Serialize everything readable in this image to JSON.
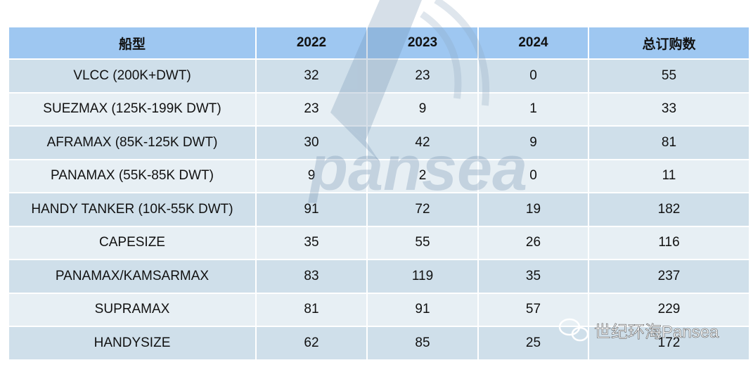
{
  "table": {
    "header": [
      "船型",
      "2022",
      "2023",
      "2024",
      "总订购数"
    ],
    "rows": [
      [
        "VLCC (200K+DWT)",
        "32",
        "23",
        "0",
        "55"
      ],
      [
        "SUEZMAX (125K-199K DWT)",
        "23",
        "9",
        "1",
        "33"
      ],
      [
        "AFRAMAX (85K-125K DWT)",
        "30",
        "42",
        "9",
        "81"
      ],
      [
        "PANAMAX (55K-85K DWT)",
        "9",
        "2",
        "0",
        "11"
      ],
      [
        "HANDY TANKER (10K-55K DWT)",
        "91",
        "72",
        "19",
        "182"
      ],
      [
        "CAPESIZE",
        "35",
        "55",
        "26",
        "116"
      ],
      [
        "PANAMAX/KAMSARMAX",
        "83",
        "119",
        "35",
        "237"
      ],
      [
        "SUPRAMAX",
        "81",
        "91",
        "57",
        "229"
      ],
      [
        "HANDYSIZE",
        "62",
        "85",
        "25",
        "172"
      ]
    ]
  },
  "watermark": {
    "logo_text": "pansea",
    "account": "世纪环海Pansea"
  }
}
